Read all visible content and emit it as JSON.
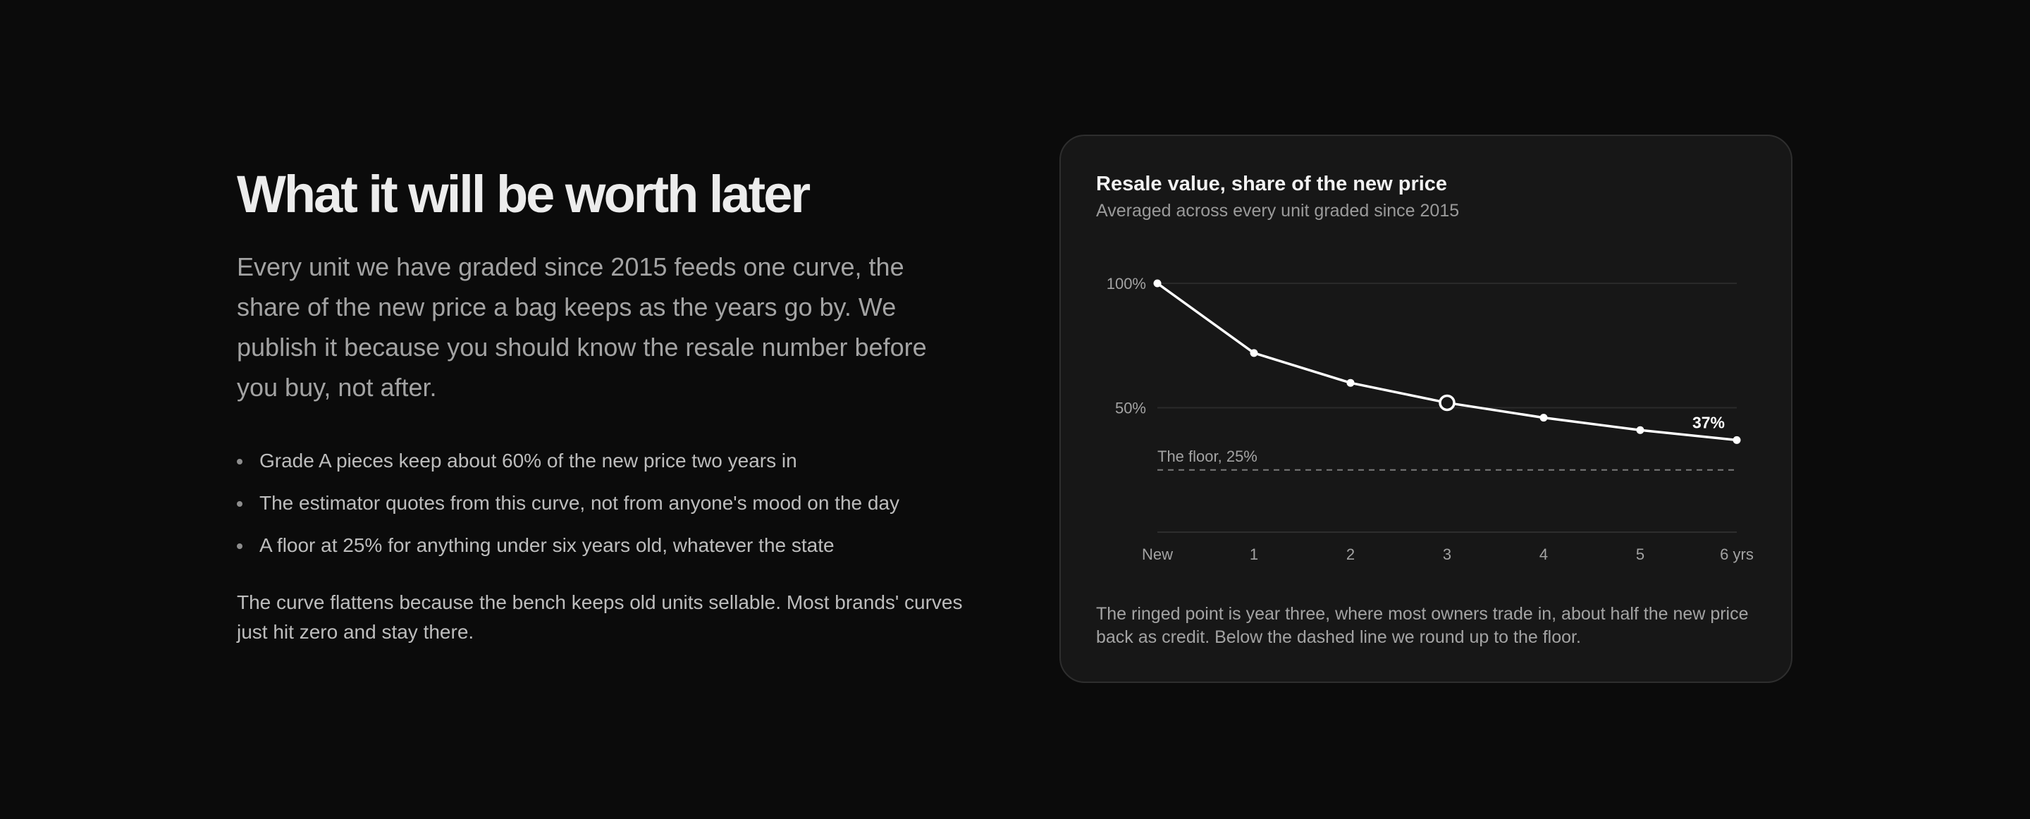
{
  "section": {
    "heading": "What it will be worth later",
    "lead": "Every unit we have graded since 2015 feeds one curve, the share of the new price a bag keeps as the years go by. We publish it because you should know the resale number before you buy, not after.",
    "bullets": [
      "Grade A pieces keep about 60% of the new price two years in",
      "The estimator quotes from this curve, not from anyone's mood on the day",
      "A floor at 25% for anything under six years old, whatever the state"
    ],
    "closing": "The curve flattens because the bench keeps old units sellable. Most brands' curves just hit zero and stay there."
  },
  "chart_card": {
    "note": "The ringed point is year three, where most owners trade in, about half the new price back as credit. Below the dashed line we round up to the floor."
  },
  "colors": {
    "background": "#0b0b0b",
    "card": "#171717",
    "line": "#ffffff",
    "muted_text": "#a3a3a3"
  },
  "chart_data": {
    "type": "line",
    "title": "Resale value, share of the new price",
    "subtitle": "Averaged across every unit graded since 2015",
    "categories": [
      "New",
      "1",
      "2",
      "3",
      "4",
      "5",
      "6 yrs"
    ],
    "series": [
      {
        "values": [
          100,
          72,
          60,
          52,
          46,
          41,
          37
        ]
      }
    ],
    "ylim": [
      0,
      100
    ],
    "yticks": [
      {
        "value": 100,
        "label": "100%"
      },
      {
        "value": 50,
        "label": "50%"
      }
    ],
    "grid": true,
    "highlight_index": 3,
    "end_label": "37%",
    "reference_line": {
      "value": 25,
      "label": "The floor, 25%",
      "style": "dashed"
    },
    "xlabel": "",
    "ylabel": ""
  }
}
